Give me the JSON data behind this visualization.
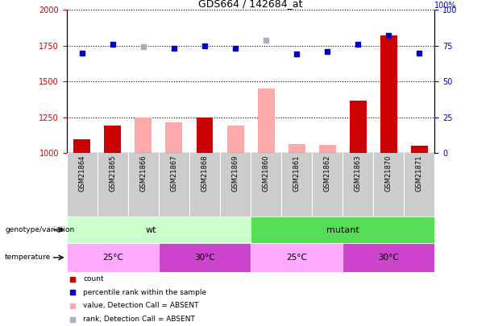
{
  "title": "GDS664 / 142684_at",
  "samples": [
    "GSM21864",
    "GSM21865",
    "GSM21866",
    "GSM21867",
    "GSM21868",
    "GSM21869",
    "GSM21860",
    "GSM21861",
    "GSM21862",
    "GSM21863",
    "GSM21870",
    "GSM21871"
  ],
  "ylim_left": [
    1000,
    2000
  ],
  "ylim_right": [
    0,
    100
  ],
  "yticks_left": [
    1000,
    1250,
    1500,
    1750,
    2000
  ],
  "yticks_right": [
    0,
    25,
    50,
    75,
    100
  ],
  "count_values": [
    1100,
    1195,
    null,
    null,
    1248,
    null,
    null,
    null,
    null,
    1365,
    1820,
    1055
  ],
  "absent_value_bars": [
    null,
    null,
    1250,
    1215,
    null,
    1195,
    1450,
    1065,
    1060,
    null,
    null,
    null
  ],
  "percentile_rank": [
    70,
    76,
    74,
    73,
    75,
    73,
    79,
    69,
    71,
    76,
    82,
    70
  ],
  "absent_rank": [
    null,
    null,
    74,
    null,
    null,
    null,
    79,
    null,
    null,
    null,
    null,
    null
  ],
  "colors": {
    "count_bar": "#cc0000",
    "absent_value_bar": "#ffaaaa",
    "percentile_dot": "#0000cc",
    "absent_rank_dot": "#aaaacc",
    "wt_bg": "#ccffcc",
    "mutant_bg": "#55dd55",
    "temp25_bg": "#ffaaff",
    "temp30_bg": "#cc44cc",
    "tick_label_color_left": "#cc0000",
    "tick_label_color_right": "#0000cc",
    "sample_bg": "#cccccc"
  },
  "wt_samples": 6,
  "mutant_samples": 6,
  "wt_25_count": 3,
  "wt_30_count": 3,
  "mutant_25_count": 3,
  "mutant_30_count": 3
}
